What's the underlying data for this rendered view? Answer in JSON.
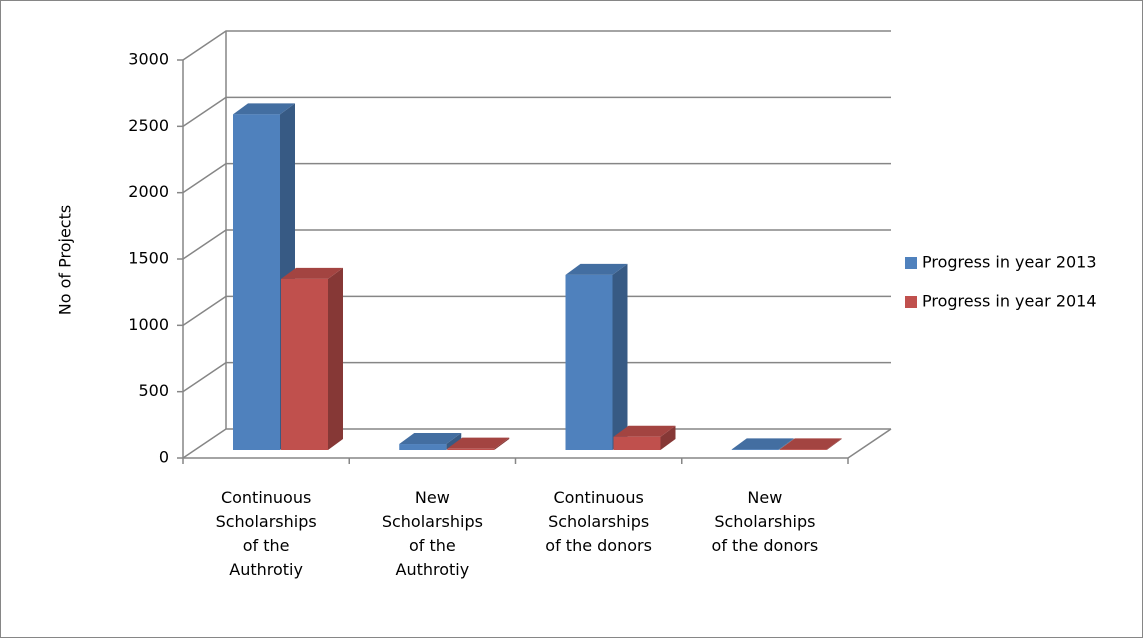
{
  "chart_data": {
    "type": "bar3d",
    "y_label": "No of Projects",
    "categories": [
      "Continuous Scholarships of the Authrotiy",
      "New Scholarships of the Authrotiy",
      "Continuous Scholarships of the donors",
      "New Scholarships of the donors"
    ],
    "series": [
      {
        "name": "Progress in year 2013",
        "color": "#4f81bd",
        "values": [
          2530,
          45,
          1320,
          5
        ]
      },
      {
        "name": "Progress in year 2014",
        "color": "#c0504d",
        "values": [
          1290,
          10,
          100,
          5
        ]
      }
    ],
    "ylim": [
      0,
      3000
    ],
    "yticks": [
      0,
      500,
      1000,
      1500,
      2000,
      2500,
      3000
    ],
    "grid": true,
    "legend": "right"
  }
}
